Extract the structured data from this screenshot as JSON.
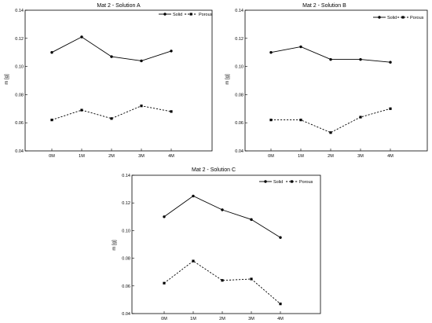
{
  "colors": {
    "ink": "#000000",
    "background": "#ffffff"
  },
  "chart_data": [
    {
      "type": "line",
      "title": "Mat 2 - Solution A",
      "xlabel": "",
      "ylabel": "m [g]",
      "categories": [
        "0M",
        "1M",
        "2M",
        "3M",
        "4M"
      ],
      "ylim": [
        0.04,
        0.14
      ],
      "yticks": [
        "0.04",
        "0.06",
        "0.08",
        "0.10",
        "0.12",
        "0.14"
      ],
      "grid": false,
      "legend_position": "top-right",
      "series": [
        {
          "name": "Solid",
          "marker": "circle",
          "style": "solid",
          "values": [
            0.11,
            0.121,
            0.107,
            0.104,
            0.111
          ]
        },
        {
          "name": "Porous",
          "marker": "square",
          "style": "dashed",
          "values": [
            0.062,
            0.069,
            0.063,
            0.072,
            0.068
          ]
        }
      ]
    },
    {
      "type": "line",
      "title": "Mat 2 - Solution B",
      "xlabel": "",
      "ylabel": "m [g]",
      "categories": [
        "0M",
        "1M",
        "2M",
        "3M",
        "4M"
      ],
      "ylim": [
        0.04,
        0.14
      ],
      "yticks": [
        "0.04",
        "0.06",
        "0.08",
        "0.10",
        "0.12",
        "0.14"
      ],
      "grid": false,
      "legend_position": "top-right",
      "series": [
        {
          "name": "Solid",
          "marker": "circle",
          "style": "solid",
          "values": [
            0.11,
            0.114,
            0.105,
            0.105,
            0.103
          ]
        },
        {
          "name": "Porous",
          "marker": "square",
          "style": "dashed",
          "values": [
            0.062,
            0.062,
            0.053,
            0.064,
            0.07
          ]
        }
      ]
    },
    {
      "type": "line",
      "title": "Mat 2 - Solution C",
      "xlabel": "",
      "ylabel": "m [g]",
      "categories": [
        "0M",
        "1M",
        "2M",
        "3M",
        "4M"
      ],
      "ylim": [
        0.04,
        0.14
      ],
      "yticks": [
        "0.04",
        "0.06",
        "0.08",
        "0.10",
        "0.12",
        "0.14"
      ],
      "grid": false,
      "legend_position": "top-right",
      "series": [
        {
          "name": "Solid",
          "marker": "circle",
          "style": "solid",
          "values": [
            0.11,
            0.125,
            0.115,
            0.108,
            0.095
          ]
        },
        {
          "name": "Porous",
          "marker": "square",
          "style": "dashed",
          "values": [
            0.062,
            0.078,
            0.064,
            0.065,
            0.047
          ]
        }
      ]
    }
  ]
}
